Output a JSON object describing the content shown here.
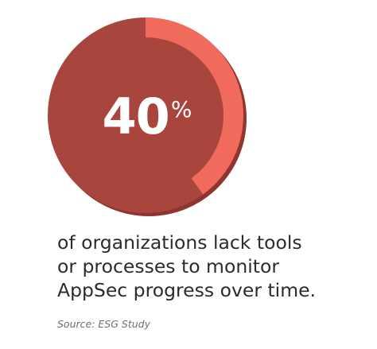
{
  "statistic": {
    "number": "40",
    "percent_sign": "%",
    "fraction": 0.4
  },
  "caption_lines": [
    "of organizations lack tools",
    "or processes to monitor",
    "AppSec progress over time."
  ],
  "source": "Source: ESG Study",
  "colors": {
    "circle": "#a8453d",
    "circle_shadow": "#8f3530",
    "arc": "#f06b5c",
    "text": "#2b2b2b",
    "source_text": "#6e6e6e"
  }
}
